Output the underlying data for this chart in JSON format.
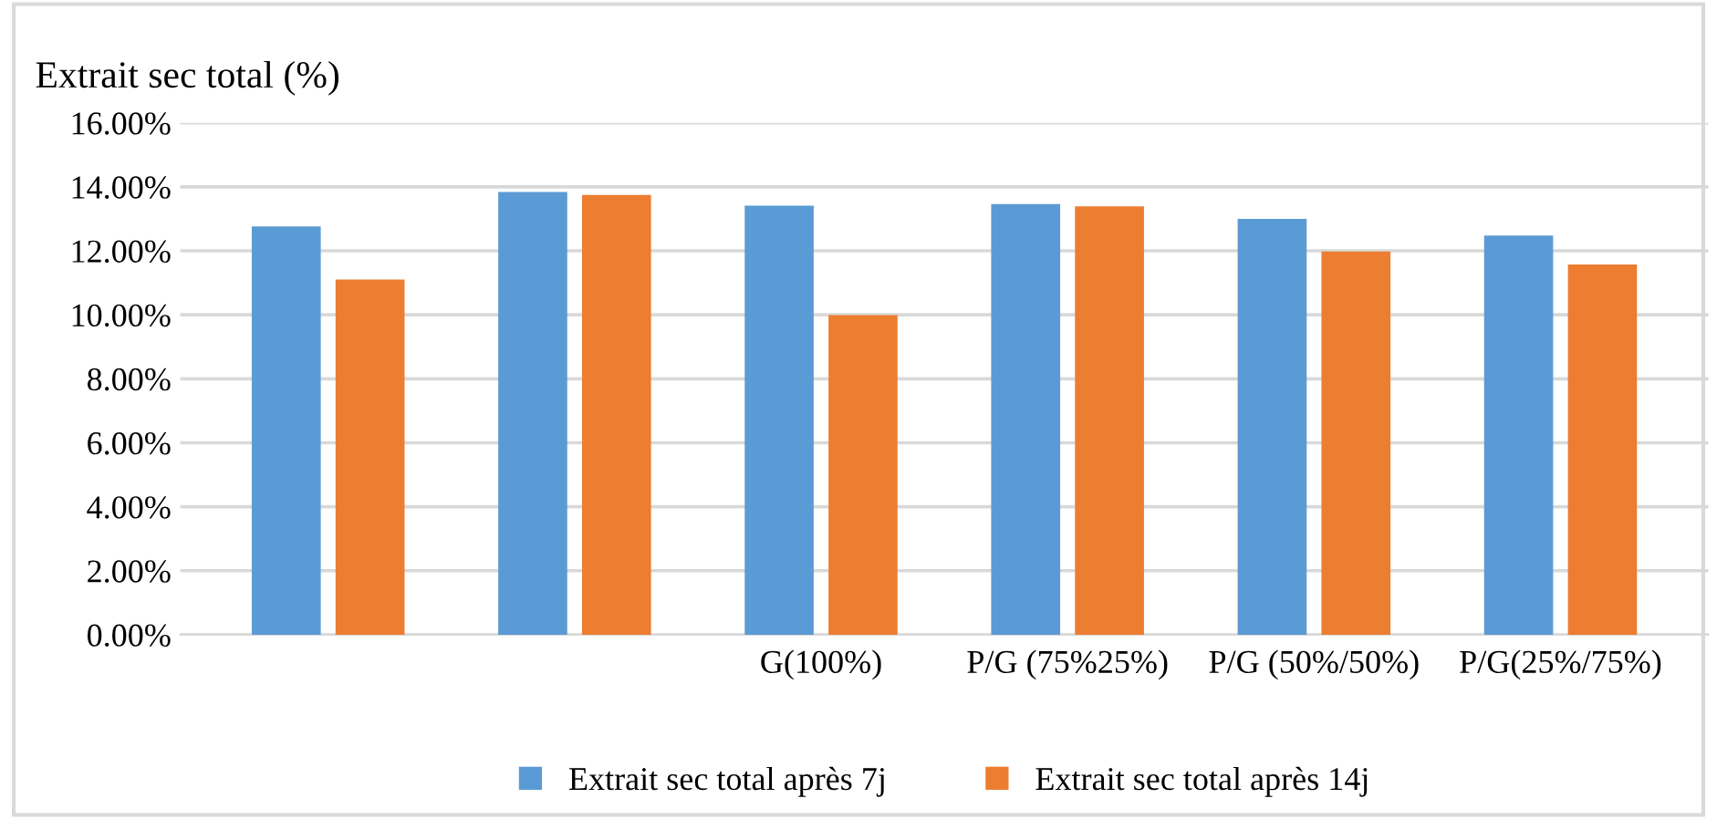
{
  "chart_data": {
    "type": "bar",
    "title": "Extrait sec total (%)",
    "categories": [
      null,
      null,
      "G(100%)",
      "P/G (75%25%)",
      "P/G (50%/50%)",
      "P/G(25%/75%)"
    ],
    "series": [
      {
        "name": "Extrait sec total après 7j",
        "color": "#5b9bd5",
        "values": [
          12.76,
          13.84,
          13.41,
          13.46,
          13.0,
          12.48
        ]
      },
      {
        "name": "Extrait sec total après 14j",
        "color": "#ed7d31",
        "values": [
          11.1,
          13.75,
          9.99,
          13.39,
          11.98,
          11.57
        ]
      }
    ],
    "ylim": [
      0,
      16
    ],
    "yticks": [
      {
        "value": 0,
        "label": "0.00%"
      },
      {
        "value": 2,
        "label": "2.00%"
      },
      {
        "value": 4,
        "label": "4.00%"
      },
      {
        "value": 6,
        "label": "6.00%"
      },
      {
        "value": 8,
        "label": "8.00%"
      },
      {
        "value": 10,
        "label": "10.00%"
      },
      {
        "value": 12,
        "label": "12.00%"
      },
      {
        "value": 14,
        "label": "14.00%"
      },
      {
        "value": 16,
        "label": "16.00%"
      }
    ],
    "grid": "y",
    "legend": "bottom"
  }
}
